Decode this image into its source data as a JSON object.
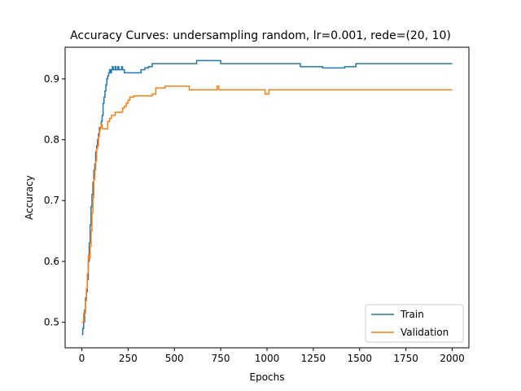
{
  "chart_data": {
    "type": "line",
    "title": "Accuracy Curves: undersampling random, lr=0.001, rede=(20, 10)",
    "xlabel": "Epochs",
    "ylabel": "Accuracy",
    "xlim": [
      -90,
      2090
    ],
    "ylim": [
      0.458,
      0.952
    ],
    "xticks": [
      0,
      250,
      500,
      750,
      1000,
      1250,
      1500,
      1750,
      2000
    ],
    "yticks": [
      0.5,
      0.6,
      0.7,
      0.8,
      0.9
    ],
    "legend_position": "bottom-right",
    "series": [
      {
        "name": "Train",
        "color": "#1f77b4",
        "x": [
          0,
          5,
          10,
          15,
          20,
          25,
          30,
          35,
          40,
          45,
          50,
          55,
          60,
          65,
          70,
          75,
          80,
          85,
          90,
          95,
          100,
          105,
          110,
          115,
          120,
          125,
          130,
          135,
          140,
          145,
          150,
          155,
          160,
          165,
          170,
          175,
          180,
          185,
          190,
          195,
          200,
          205,
          210,
          215,
          220,
          225,
          230,
          240,
          250,
          260,
          280,
          300,
          320,
          340,
          350,
          360,
          380,
          400,
          450,
          500,
          550,
          600,
          620,
          630,
          640,
          650,
          700,
          750,
          800,
          900,
          1000,
          1100,
          1170,
          1180,
          1250,
          1300,
          1400,
          1420,
          1450,
          1480,
          1500,
          1550,
          1600,
          1700,
          1800,
          1900,
          2000
        ],
        "y": [
          0.48,
          0.49,
          0.5,
          0.52,
          0.54,
          0.55,
          0.57,
          0.6,
          0.63,
          0.66,
          0.69,
          0.71,
          0.73,
          0.75,
          0.76,
          0.78,
          0.79,
          0.8,
          0.81,
          0.82,
          0.82,
          0.83,
          0.84,
          0.86,
          0.87,
          0.88,
          0.89,
          0.9,
          0.905,
          0.91,
          0.915,
          0.91,
          0.915,
          0.92,
          0.915,
          0.915,
          0.92,
          0.915,
          0.915,
          0.92,
          0.915,
          0.915,
          0.915,
          0.92,
          0.915,
          0.915,
          0.91,
          0.91,
          0.91,
          0.91,
          0.91,
          0.91,
          0.915,
          0.918,
          0.918,
          0.92,
          0.925,
          0.925,
          0.925,
          0.925,
          0.925,
          0.925,
          0.93,
          0.93,
          0.93,
          0.93,
          0.93,
          0.925,
          0.925,
          0.925,
          0.925,
          0.925,
          0.925,
          0.92,
          0.92,
          0.918,
          0.918,
          0.92,
          0.92,
          0.925,
          0.925,
          0.925,
          0.925,
          0.925,
          0.925,
          0.925,
          0.925
        ]
      },
      {
        "name": "Validation",
        "color": "#ff7f0e",
        "x": [
          0,
          5,
          10,
          15,
          20,
          25,
          30,
          35,
          40,
          45,
          50,
          55,
          60,
          65,
          70,
          75,
          80,
          85,
          90,
          95,
          100,
          105,
          110,
          120,
          130,
          140,
          150,
          160,
          170,
          180,
          190,
          200,
          210,
          220,
          230,
          240,
          250,
          260,
          280,
          300,
          320,
          350,
          380,
          400,
          450,
          500,
          550,
          580,
          600,
          650,
          700,
          730,
          740,
          750,
          800,
          900,
          980,
          990,
          1000,
          1010,
          1100,
          1200,
          1300,
          1400,
          1500,
          1600,
          1700,
          1800,
          1900,
          2000
        ],
        "y": [
          0.5,
          0.5,
          0.515,
          0.515,
          0.535,
          0.555,
          0.58,
          0.61,
          0.605,
          0.625,
          0.65,
          0.68,
          0.705,
          0.735,
          0.75,
          0.765,
          0.785,
          0.79,
          0.805,
          0.815,
          0.82,
          0.825,
          0.818,
          0.818,
          0.818,
          0.83,
          0.835,
          0.84,
          0.84,
          0.845,
          0.845,
          0.845,
          0.845,
          0.852,
          0.855,
          0.86,
          0.865,
          0.87,
          0.872,
          0.872,
          0.872,
          0.872,
          0.875,
          0.885,
          0.888,
          0.888,
          0.888,
          0.882,
          0.882,
          0.882,
          0.882,
          0.888,
          0.882,
          0.882,
          0.882,
          0.882,
          0.882,
          0.875,
          0.875,
          0.882,
          0.882,
          0.882,
          0.882,
          0.882,
          0.882,
          0.882,
          0.882,
          0.882,
          0.882,
          0.882
        ]
      }
    ]
  }
}
